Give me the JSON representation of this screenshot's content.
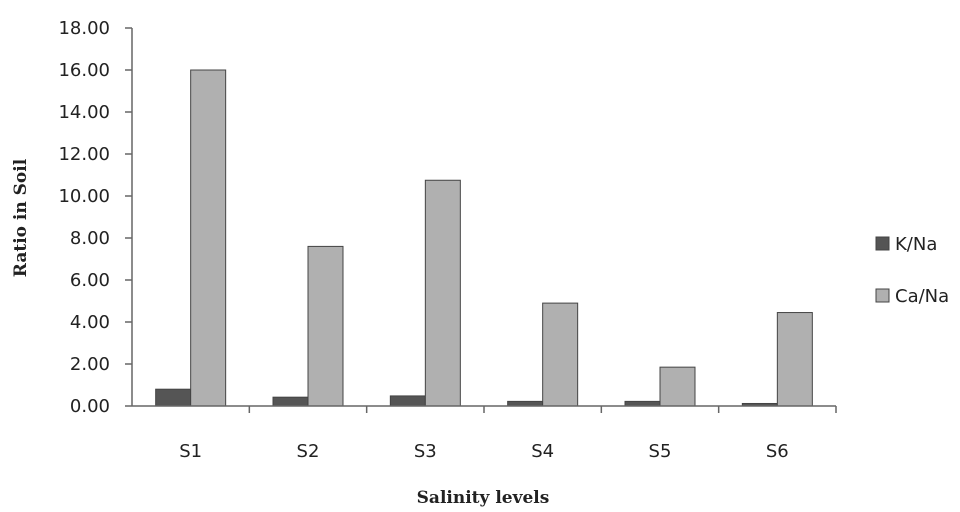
{
  "chart_data": {
    "type": "bar",
    "xlabel": "Salinity levels",
    "ylabel": "Ratio in Soil",
    "ylim": [
      0,
      18
    ],
    "yticks": [
      "0.00",
      "2.00",
      "4.00",
      "6.00",
      "8.00",
      "10.00",
      "12.00",
      "14.00",
      "16.00",
      "18.00"
    ],
    "categories": [
      "S1",
      "S2",
      "S3",
      "S4",
      "S5",
      "S6"
    ],
    "series": [
      {
        "name": "K/Na",
        "color": "#555555",
        "values": [
          0.8,
          0.42,
          0.48,
          0.22,
          0.22,
          0.12
        ]
      },
      {
        "name": "Ca/Na",
        "color": "#b0b0b0",
        "values": [
          16.0,
          7.6,
          10.75,
          4.9,
          1.85,
          4.45
        ]
      }
    ],
    "grid": false,
    "legend": "right"
  }
}
